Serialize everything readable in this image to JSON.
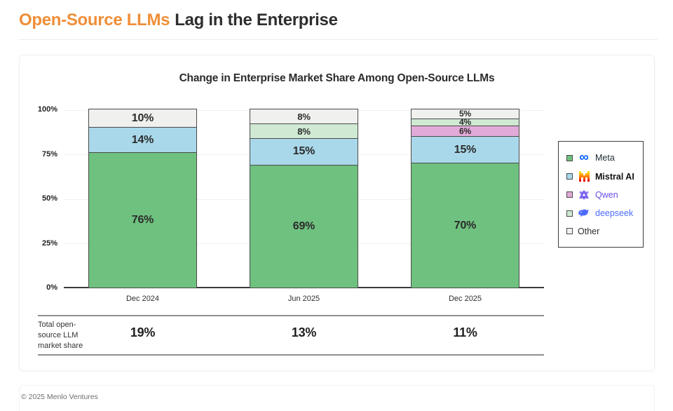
{
  "header": {
    "title_highlight": "Open-Source LLMs",
    "title_rest": "Lag in the Enterprise"
  },
  "footer": {
    "copyright": "© 2025 Menlo Ventures"
  },
  "legend": {
    "items": [
      {
        "label": "Meta",
        "swatch": "#6FC17F",
        "label_color": "#1C2B33",
        "icon": "meta-infinity-icon"
      },
      {
        "label": "Mistral AI",
        "swatch": "#A9D8EA",
        "label_color": "#111111",
        "icon": "mistral-logo-icon"
      },
      {
        "label": "Qwen",
        "swatch": "#E2AAD8",
        "label_color": "#6B4EE6",
        "icon": "qwen-logo-icon"
      },
      {
        "label": "deepseek",
        "swatch": "#CFE9D3",
        "label_color": "#4D6BFE",
        "icon": "deepseek-whale-icon"
      },
      {
        "label": "Other",
        "swatch": "#F0F0EE",
        "label_color": "#2E2E2E",
        "icon": null
      }
    ]
  },
  "chart_data": {
    "type": "bar",
    "stacked": true,
    "title": "Change in Enterprise Market Share Among Open-Source LLMs",
    "categories": [
      "Dec 2024",
      "Jun 2025",
      "Dec 2025"
    ],
    "series": [
      {
        "name": "Meta",
        "color": "#6FC17F",
        "values": [
          76,
          69,
          70
        ]
      },
      {
        "name": "Mistral AI",
        "color": "#A9D8EA",
        "values": [
          14,
          15,
          15
        ]
      },
      {
        "name": "Qwen",
        "color": "#E2AAD8",
        "values": [
          0,
          0,
          6
        ]
      },
      {
        "name": "deepseek",
        "color": "#CFE9D3",
        "values": [
          0,
          8,
          4
        ]
      },
      {
        "name": "Other",
        "color": "#F0F0EE",
        "values": [
          10,
          8,
          5
        ]
      }
    ],
    "y_ticks": [
      "100%",
      "75%",
      "50%",
      "25%",
      "0%"
    ],
    "ylim": [
      0,
      100
    ],
    "grid": true,
    "legend_position": "right",
    "value_label_format": "{v}%",
    "summary_row": {
      "label": "Total open-source LLM market share",
      "label_lines": [
        "Total open-",
        "source LLM",
        "market share"
      ],
      "values": [
        "19%",
        "13%",
        "11%"
      ]
    }
  }
}
